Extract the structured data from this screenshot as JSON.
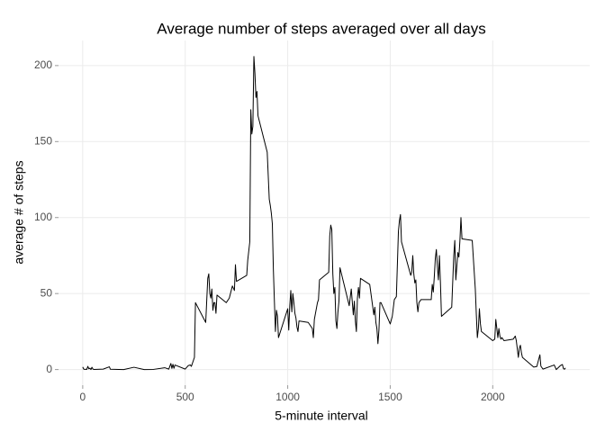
{
  "chart_data": {
    "type": "line",
    "title": "Average number of steps averaged over all days",
    "x_label": "5-minute interval",
    "y_label": "average # of steps",
    "x": [
      0,
      5,
      10,
      15,
      20,
      25,
      30,
      35,
      40,
      45,
      50,
      55,
      100,
      130,
      135,
      200,
      250,
      300,
      345,
      400,
      420,
      430,
      435,
      440,
      445,
      450,
      500,
      515,
      525,
      530,
      545,
      550,
      600,
      610,
      615,
      620,
      625,
      630,
      635,
      640,
      645,
      650,
      655,
      700,
      715,
      730,
      740,
      745,
      750,
      800,
      805,
      815,
      820,
      825,
      830,
      835,
      840,
      845,
      850,
      855,
      900,
      910,
      915,
      920,
      925,
      930,
      935,
      940,
      945,
      950,
      955,
      1000,
      1005,
      1010,
      1015,
      1020,
      1025,
      1030,
      1035,
      1040,
      1045,
      1050,
      1055,
      1100,
      1120,
      1125,
      1130,
      1145,
      1150,
      1155,
      1200,
      1205,
      1210,
      1215,
      1220,
      1225,
      1230,
      1235,
      1240,
      1245,
      1250,
      1255,
      1300,
      1310,
      1320,
      1325,
      1330,
      1335,
      1340,
      1345,
      1350,
      1355,
      1400,
      1420,
      1425,
      1430,
      1435,
      1440,
      1445,
      1450,
      1455,
      1500,
      1510,
      1520,
      1530,
      1540,
      1545,
      1550,
      1555,
      1600,
      1605,
      1610,
      1615,
      1620,
      1625,
      1630,
      1635,
      1640,
      1650,
      1700,
      1705,
      1710,
      1715,
      1720,
      1725,
      1730,
      1735,
      1740,
      1745,
      1750,
      1800,
      1805,
      1810,
      1815,
      1820,
      1825,
      1830,
      1835,
      1840,
      1845,
      1850,
      1900,
      1915,
      1920,
      1925,
      1930,
      1935,
      1940,
      1945,
      2000,
      2010,
      2015,
      2020,
      2025,
      2030,
      2035,
      2040,
      2045,
      2055,
      2100,
      2110,
      2115,
      2125,
      2130,
      2135,
      2140,
      2145,
      2200,
      2215,
      2230,
      2235,
      2245,
      2300,
      2310,
      2330,
      2340,
      2345,
      2350,
      2355
    ],
    "series": [
      {
        "name": "steps",
        "color": "#000000",
        "values": [
          1.7,
          0.3,
          0.1,
          0.2,
          0.1,
          2.1,
          0.5,
          0.9,
          0,
          1.5,
          0.3,
          0.1,
          0.3,
          1.8,
          0.2,
          0,
          1.5,
          0,
          0.1,
          1.2,
          0.3,
          4,
          0.7,
          3.5,
          0.8,
          3,
          0.3,
          2.6,
          3,
          2.1,
          8,
          44,
          31,
          60,
          63,
          50,
          47,
          53,
          39,
          44,
          44,
          37,
          49,
          44,
          47,
          55,
          52,
          69,
          58,
          62,
          72,
          84,
          171,
          155,
          160,
          206,
          195,
          179,
          183,
          167,
          143,
          112,
          108,
          103,
          96,
          66,
          45,
          25,
          39,
          35,
          21,
          40,
          26,
          42,
          52,
          38,
          50,
          44,
          37,
          34,
          28,
          25,
          32,
          31,
          27,
          21,
          33,
          44,
          46,
          59,
          64,
          88,
          95,
          92,
          63,
          50,
          54,
          32,
          27,
          38,
          45,
          67,
          42,
          53,
          36,
          45,
          32,
          25,
          47,
          54,
          47,
          60,
          56,
          36,
          41,
          31,
          27,
          17,
          26,
          44,
          44,
          30,
          35,
          46,
          48,
          91,
          98,
          102,
          84,
          62,
          64,
          75,
          63,
          57,
          59,
          44,
          38,
          44,
          46,
          46,
          56,
          51,
          61,
          73,
          79,
          68,
          59,
          75,
          57,
          35,
          41,
          58,
          75,
          85,
          59,
          68,
          77,
          74,
          85,
          100,
          86,
          85,
          53,
          36,
          21,
          27,
          40,
          30,
          25,
          19,
          20,
          33,
          27,
          21,
          27,
          22,
          20,
          21,
          19,
          20,
          22,
          19,
          8,
          14,
          16,
          11,
          8,
          1.6,
          2,
          9.7,
          2.2,
          0.3,
          3,
          0,
          2.6,
          3.3,
          0.6,
          0.2,
          1.1
        ]
      }
    ],
    "xlim": [
      -118,
      2473
    ],
    "ylim": [
      -10.3,
      216.5
    ],
    "xticks": [
      0,
      500,
      1000,
      1500,
      2000
    ],
    "yticks": [
      0,
      50,
      100,
      150,
      200
    ],
    "grid": true
  }
}
